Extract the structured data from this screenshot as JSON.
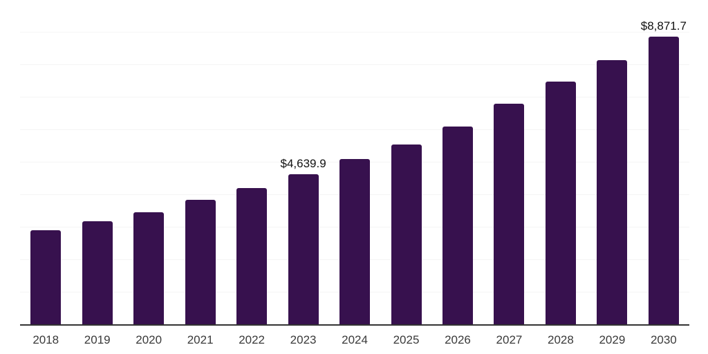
{
  "chart_data": {
    "type": "bar",
    "title": "",
    "xlabel": "",
    "ylabel": "",
    "categories": [
      "2018",
      "2019",
      "2020",
      "2021",
      "2022",
      "2023",
      "2024",
      "2025",
      "2026",
      "2027",
      "2028",
      "2029",
      "2030"
    ],
    "values": [
      2915,
      3190,
      3470,
      3845,
      4205,
      4639.9,
      5110,
      5555,
      6110,
      6810,
      7490,
      8150,
      8871.7
    ],
    "data_labels": {
      "2023": "$4,639.9",
      "2030": "$8,871.7"
    },
    "ylim": [
      0,
      10000
    ],
    "gridline_step": 1000,
    "grid": "horizontal",
    "legend": "none",
    "bar_color": "#37114e"
  },
  "styles": {
    "background": "#ffffff",
    "axis_line_color": "#333333",
    "gridline_color": "#f5f5f5",
    "top_gridline_color": "#eaeaea",
    "tick_label_color": "#3a3a3a",
    "value_label_color": "#111111"
  }
}
